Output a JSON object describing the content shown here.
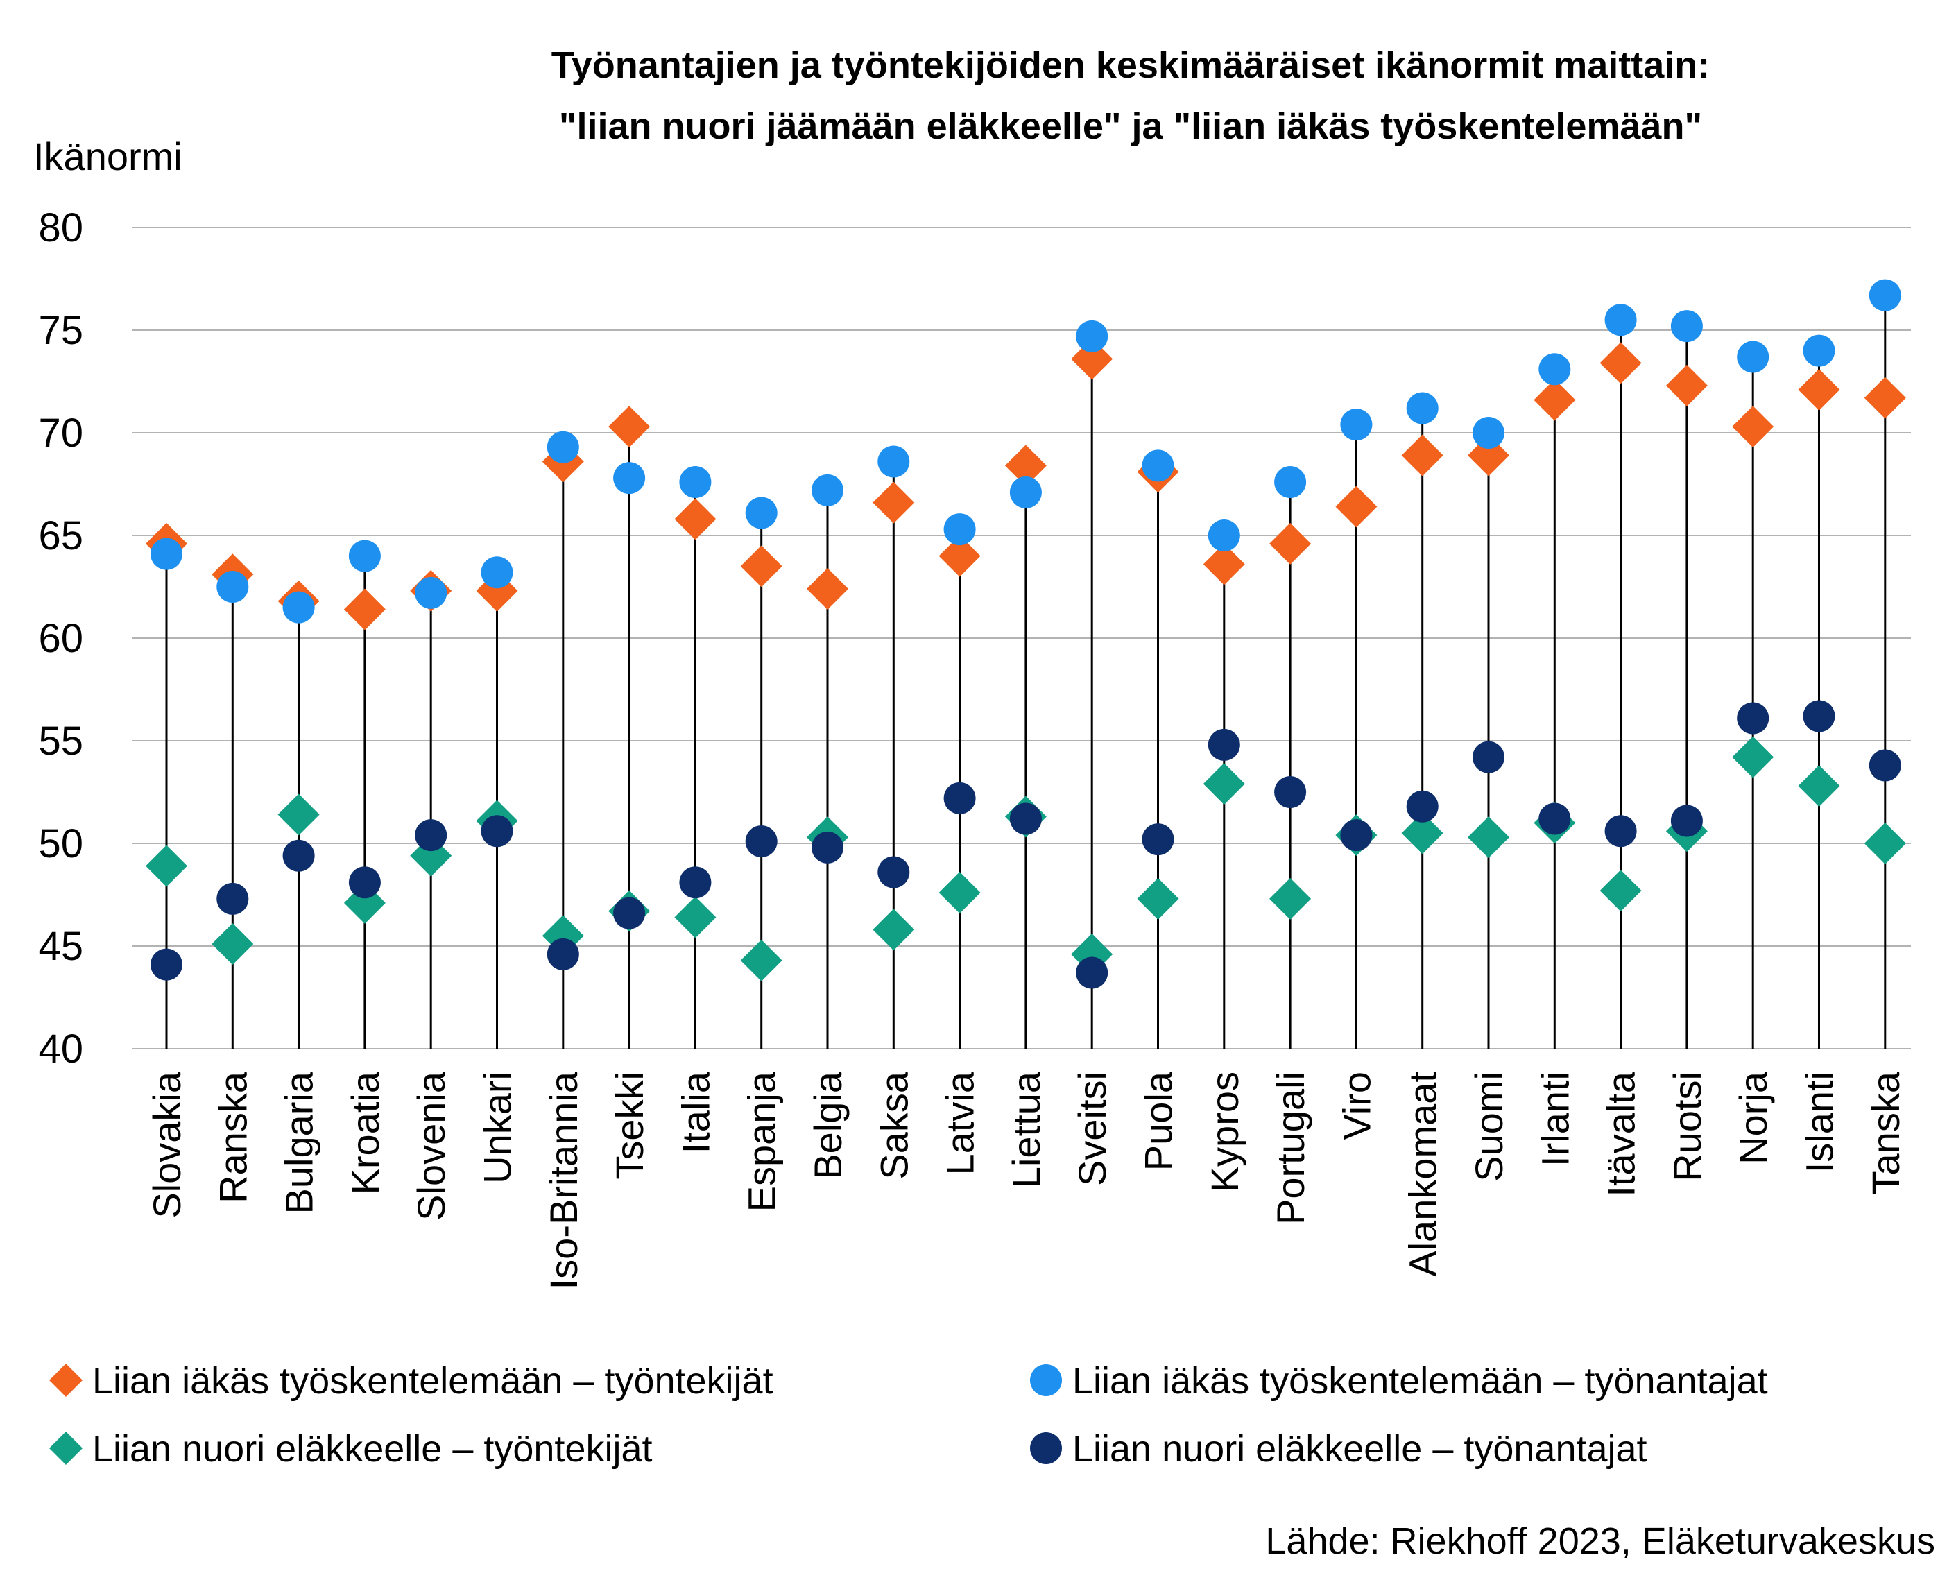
{
  "chart_data": {
    "type": "scatter",
    "title_lines": [
      "Työnantajien ja työntekijöiden keskimääräiset ikänormit maittain:",
      "\"liian nuori jäämään eläkkeelle\" ja \"liian iäkäs työskentelemään\""
    ],
    "ylabel": "Ikänormi",
    "ylim": [
      40,
      80
    ],
    "yticks": [
      "40",
      "45",
      "50",
      "55",
      "60",
      "65",
      "70",
      "75",
      "80"
    ],
    "grid": true,
    "legend_position": "bottom",
    "categories": [
      "Slovakia",
      "Ranska",
      "Bulgaria",
      "Kroatia",
      "Slovenia",
      "Unkari",
      "Iso-Britannia",
      "Tsekki",
      "Italia",
      "Espanja",
      "Belgia",
      "Saksa",
      "Latvia",
      "Liettua",
      "Sveitsi",
      "Puola",
      "Kypros",
      "Portugali",
      "Viro",
      "Alankomaat",
      "Suomi",
      "Irlanti",
      "Itävalta",
      "Ruotsi",
      "Norja",
      "Islanti",
      "Tanska"
    ],
    "series": [
      {
        "name": "Liian iäkäs työskentelemään – työntekijät",
        "marker": "diamond",
        "color": "#f2621d",
        "values": [
          64.6,
          63.1,
          61.8,
          61.4,
          62.3,
          62.3,
          68.6,
          70.3,
          65.8,
          63.5,
          62.4,
          66.6,
          64.0,
          68.4,
          73.6,
          68.1,
          63.6,
          64.6,
          66.4,
          68.9,
          68.9,
          71.6,
          73.4,
          72.3,
          70.3,
          72.1,
          71.7
        ]
      },
      {
        "name": "Liian iäkäs työskentelemään – työnantajat",
        "marker": "circle",
        "color": "#1e90f0",
        "values": [
          64.1,
          62.5,
          61.5,
          64.0,
          62.2,
          63.2,
          69.3,
          67.8,
          67.6,
          66.1,
          67.2,
          68.6,
          65.3,
          67.1,
          74.7,
          68.4,
          65.0,
          67.6,
          70.4,
          71.2,
          70.0,
          73.1,
          75.5,
          75.2,
          73.7,
          74.0,
          76.7
        ]
      },
      {
        "name": "Liian nuori eläkkeelle – työntekijät",
        "marker": "diamond",
        "color": "#12a085",
        "values": [
          48.9,
          45.1,
          51.4,
          47.1,
          49.4,
          51.1,
          45.5,
          46.7,
          46.4,
          44.3,
          50.3,
          45.8,
          47.6,
          51.3,
          44.6,
          47.3,
          52.9,
          47.3,
          50.4,
          50.5,
          50.3,
          51.0,
          47.7,
          50.6,
          54.2,
          52.8,
          50.0
        ]
      },
      {
        "name": "Liian nuori eläkkeelle – työnantajat",
        "marker": "circle",
        "color": "#0d2e6b",
        "values": [
          44.1,
          47.3,
          49.4,
          48.1,
          50.4,
          50.6,
          44.6,
          46.6,
          48.1,
          50.1,
          49.8,
          48.6,
          52.2,
          51.2,
          43.7,
          50.2,
          54.8,
          52.5,
          50.4,
          51.8,
          54.2,
          51.2,
          50.6,
          51.1,
          56.1,
          56.2,
          53.8
        ]
      }
    ],
    "source": "Lähde: Riekhoff 2023, Eläketurvakeskus"
  }
}
